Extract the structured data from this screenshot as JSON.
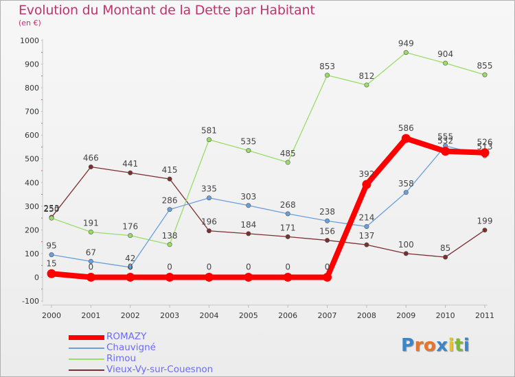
{
  "title": "Evolution du Montant de la Dette par Habitant",
  "subtitle": "(en €)",
  "logo": "Proxiti",
  "chart_data": {
    "type": "line",
    "x": [
      "2000",
      "2001",
      "2002",
      "2003",
      "2004",
      "2005",
      "2006",
      "2007",
      "2008",
      "2009",
      "2010",
      "2011"
    ],
    "ylim": [
      -100,
      1000
    ],
    "yticks": [
      -100,
      0,
      100,
      200,
      300,
      400,
      500,
      600,
      700,
      800,
      900,
      1000
    ],
    "grid": false,
    "legend_position": "bottom-left",
    "series": [
      {
        "name": "ROMAZY",
        "color": "#ff0000",
        "values": [
          15,
          0,
          0,
          0,
          0,
          0,
          0,
          0,
          392,
          586,
          532,
          526
        ]
      },
      {
        "name": "Chauvigné",
        "color": "#6a9fd8",
        "values": [
          95,
          67,
          42,
          286,
          335,
          303,
          268,
          238,
          214,
          358,
          555,
          513
        ]
      },
      {
        "name": "Rimou",
        "color": "#99dd66",
        "values": [
          250,
          191,
          176,
          138,
          581,
          535,
          485,
          853,
          812,
          949,
          904,
          855
        ]
      },
      {
        "name": "Vieux-Vy-sur-Couesnon",
        "color": "#7a2f2f",
        "values": [
          253,
          466,
          441,
          415,
          196,
          184,
          171,
          156,
          137,
          100,
          85,
          199
        ]
      }
    ]
  }
}
